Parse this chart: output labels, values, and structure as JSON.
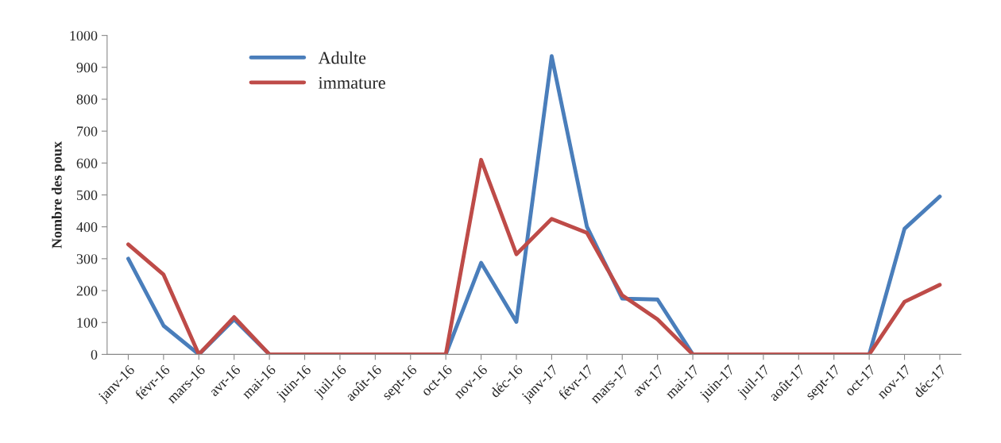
{
  "chart_data": {
    "type": "line",
    "ylabel": "Nombre des poux",
    "categories": [
      "janv-16",
      "févr-16",
      "mars-16",
      "avr-16",
      "mai-16",
      "juin-16",
      "juil-16",
      "août-16",
      "sept-16",
      "oct-16",
      "nov-16",
      "déc-16",
      "janv-17",
      "févr-17",
      "mars-17",
      "avr-17",
      "mai-17",
      "juin-17",
      "juil-17",
      "août-17",
      "sept-17",
      "oct-17",
      "nov-17",
      "déc-17"
    ],
    "series": [
      {
        "name": "Adulte",
        "color": "#4a7ebb",
        "values": [
          300,
          90,
          0,
          110,
          0,
          0,
          0,
          0,
          0,
          0,
          287,
          102,
          935,
          400,
          175,
          172,
          0,
          0,
          0,
          0,
          0,
          0,
          394,
          495
        ]
      },
      {
        "name": "immature",
        "color": "#be4b48",
        "values": [
          345,
          250,
          0,
          117,
          0,
          0,
          0,
          0,
          0,
          0,
          610,
          314,
          425,
          381,
          185,
          110,
          0,
          0,
          0,
          0,
          0,
          0,
          165,
          218
        ]
      }
    ],
    "ylim": [
      0,
      1000
    ],
    "yticks": [
      0,
      100,
      200,
      300,
      400,
      500,
      600,
      700,
      800,
      900,
      1000
    ],
    "grid": false,
    "legend": "top left",
    "marker": "none",
    "line_style": "solid"
  }
}
